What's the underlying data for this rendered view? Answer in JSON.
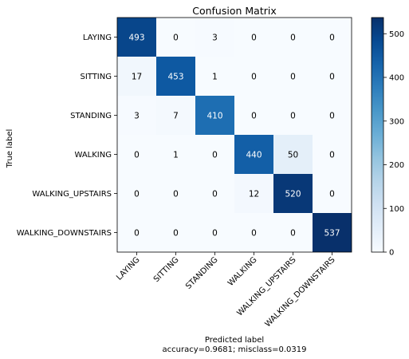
{
  "chart_data": {
    "type": "heatmap",
    "title": "Confusion Matrix",
    "xlabel": "Predicted label",
    "xlabel_sub": "accuracy=0.9681; misclass=0.0319",
    "ylabel": "True label",
    "row_labels": [
      "LAYING",
      "SITTING",
      "STANDING",
      "WALKING",
      "WALKING_UPSTAIRS",
      "WALKING_DOWNSTAIRS"
    ],
    "col_labels": [
      "LAYING",
      "SITTING",
      "STANDING",
      "WALKING",
      "WALKING_UPSTAIRS",
      "WALKING_DOWNSTAIRS"
    ],
    "matrix": [
      [
        493,
        0,
        3,
        0,
        0,
        0
      ],
      [
        17,
        453,
        1,
        0,
        0,
        0
      ],
      [
        3,
        7,
        410,
        0,
        0,
        0
      ],
      [
        0,
        1,
        0,
        440,
        50,
        0
      ],
      [
        0,
        0,
        0,
        12,
        520,
        0
      ],
      [
        0,
        0,
        0,
        0,
        0,
        537
      ]
    ],
    "colormap": "Blues",
    "colorbar": {
      "min": 0,
      "max": 537,
      "ticks": [
        0,
        100,
        200,
        300,
        400,
        500
      ]
    },
    "grid": false
  }
}
